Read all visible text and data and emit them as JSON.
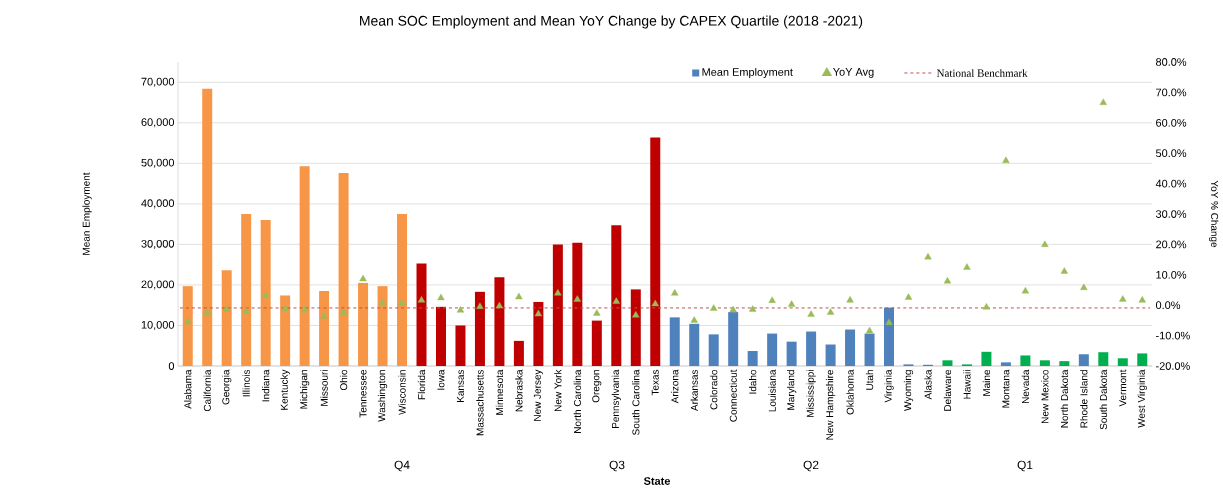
{
  "chart_data": {
    "type": "bar",
    "title": "Mean SOC Employment and Mean YoY Change by CAPEX Quartile (2018 -2021)",
    "xlabel": "State",
    "ylabel": "Mean Employment",
    "y2label": "YoY % Change",
    "categories": [
      "Alabama",
      "California",
      "Georgia",
      "Illinois",
      "Indiana",
      "Kentucky",
      "Michigan",
      "Missouri",
      "Ohio",
      "Tennessee",
      "Washington",
      "Wisconsin",
      "Florida",
      "Iowa",
      "Kansas",
      "Massachusetts",
      "Minnesota",
      "Nebraska",
      "New Jersey",
      "New York",
      "North Carolina",
      "Oregon",
      "Pennsylvania",
      "South Carolina",
      "Texas",
      "Arizona",
      "Arkansas",
      "Colorado",
      "Connecticut",
      "Idaho",
      "Louisiana",
      "Maryland",
      "Mississippi",
      "New Hampshire",
      "Oklahoma",
      "Utah",
      "Virginia",
      "Wyoming",
      "Alaska",
      "Delaware",
      "Hawaii",
      "Maine",
      "Montana",
      "Nevada",
      "New Mexico",
      "North Dakota",
      "Rhode Island",
      "South Dakota",
      "Vermont",
      "West Virginia"
    ],
    "series": [
      {
        "name": "Mean Employment",
        "color": "#4f81bd",
        "colors": [
          "#f79646",
          "#f79646",
          "#f79646",
          "#f79646",
          "#f79646",
          "#f79646",
          "#f79646",
          "#f79646",
          "#f79646",
          "#f79646",
          "#f79646",
          "#f79646",
          "#c00000",
          "#c00000",
          "#c00000",
          "#c00000",
          "#c00000",
          "#c00000",
          "#c00000",
          "#c00000",
          "#c00000",
          "#c00000",
          "#c00000",
          "#c00000",
          "#c00000",
          "#4f81bd",
          "#4f81bd",
          "#4f81bd",
          "#4f81bd",
          "#4f81bd",
          "#4f81bd",
          "#4f81bd",
          "#4f81bd",
          "#4f81bd",
          "#4f81bd",
          "#4f81bd",
          "#4f81bd",
          "#4f81bd",
          "#4f81bd",
          "#00b050",
          "#00b050",
          "#00b050",
          "#4f81bd",
          "#00b050",
          "#00b050",
          "#00b050",
          "#4f81bd",
          "#00b050",
          "#00b050",
          "#00b050"
        ],
        "values": [
          19700,
          68400,
          23600,
          37500,
          36000,
          17400,
          49300,
          18500,
          47600,
          20500,
          19700,
          37500,
          25300,
          14600,
          10000,
          18300,
          21900,
          6200,
          15800,
          30000,
          30400,
          11200,
          34700,
          18900,
          56400,
          12000,
          10400,
          7800,
          13300,
          3700,
          8000,
          6000,
          8500,
          5300,
          9000,
          8000,
          14400,
          400,
          300,
          1400,
          400,
          3500,
          900,
          2600,
          1400,
          1200,
          2900,
          3400,
          1900,
          3100
        ]
      },
      {
        "name": "YoY Avg",
        "type": "scatter",
        "axis": "y2",
        "marker": "triangle",
        "color": "#9bbb59",
        "values": [
          -5.5,
          -2.5,
          -1.4,
          -2.1,
          3.2,
          -1.2,
          -1.6,
          -3.6,
          -2.5,
          8.6,
          0.8,
          0.7,
          1.6,
          2.4,
          -1.7,
          -0.5,
          -0.3,
          2.7,
          -2.9,
          3.9,
          1.9,
          -2.7,
          1.2,
          -3.3,
          0.4,
          3.9,
          -5.0,
          -1.1,
          -1.6,
          -1.4,
          1.5,
          0.2,
          -3.1,
          -2.4,
          1.6,
          -8.5,
          -5.8,
          2.5,
          15.8,
          7.9,
          12.4,
          -0.7,
          47.5,
          4.6,
          19.9,
          11.1,
          5.7,
          66.6,
          1.9,
          1.6
        ]
      }
    ],
    "ref_lines": [
      {
        "axis": "y2",
        "value": -0.9,
        "label": "National Benchmark",
        "color": "#c0504d",
        "line_style": "dashed"
      }
    ],
    "annotations": [
      "Q4",
      "Q3",
      "Q2",
      "Q1"
    ],
    "ylim": [
      0,
      75000
    ],
    "yticks": [
      0,
      {
        "value": 10000,
        "label": "10,000"
      },
      {
        "value": 20000,
        "label": "20,000"
      },
      {
        "value": 30000,
        "label": "30,000"
      },
      {
        "value": 40000,
        "label": "40,000"
      },
      {
        "value": 50000,
        "label": "50,000"
      },
      {
        "value": 60000,
        "label": "60,000"
      },
      {
        "value": 70000,
        "label": "70,000"
      }
    ],
    "y2lim": [
      -20,
      80
    ],
    "y2ticks": [
      {
        "value": -20,
        "label": "-20.0%"
      },
      {
        "value": -10,
        "label": "-10.0%"
      },
      {
        "value": 0,
        "label": "0.0%"
      },
      {
        "value": 10,
        "label": "10.0%"
      },
      {
        "value": 20,
        "label": "20.0%"
      },
      {
        "value": 30,
        "label": "30.0%"
      },
      {
        "value": 40,
        "label": "40.0%"
      },
      {
        "value": 50,
        "label": "50.0%"
      },
      {
        "value": 60,
        "label": "60.0%"
      },
      {
        "value": 70,
        "label": "70.0%"
      },
      {
        "value": 80,
        "label": "80.0%"
      }
    ],
    "grid": "y",
    "legend": "top right"
  }
}
